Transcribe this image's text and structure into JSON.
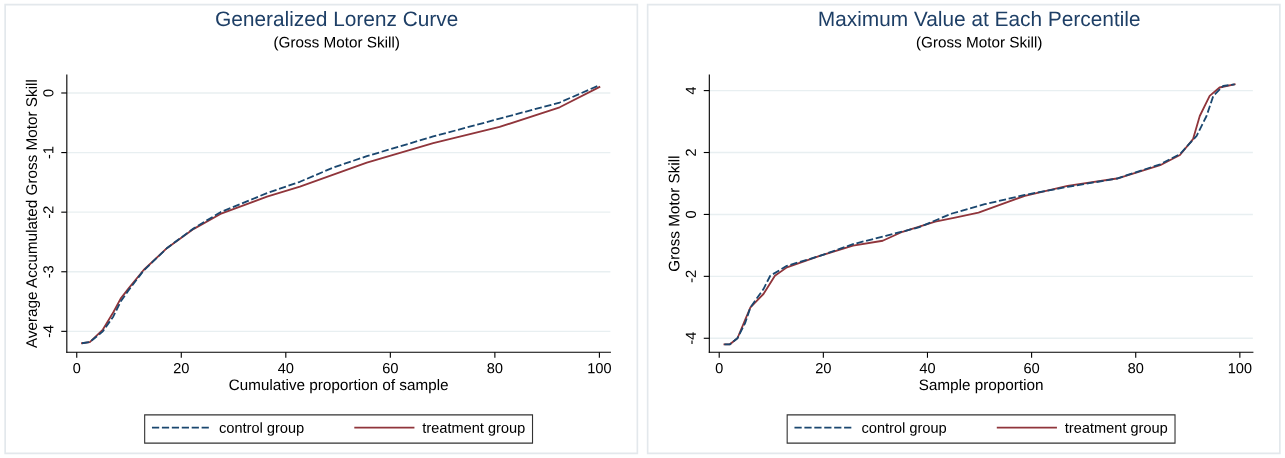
{
  "chart_data": [
    {
      "type": "line",
      "title": "Generalized Lorenz Curve",
      "subtitle": "(Gross Motor Skill)",
      "xlabel": "Cumulative proportion of sample",
      "ylabel": "Average Accumulated Gross Motor Skill",
      "xlim": [
        -1.9,
        102.1
      ],
      "ylim": [
        -4.35,
        0.3
      ],
      "xticks": [
        0,
        20,
        40,
        60,
        80,
        100
      ],
      "yticks": [
        -4,
        -3,
        -2,
        -1,
        0
      ],
      "grid": "y",
      "legend": "bottom",
      "series": [
        {
          "name": "control group",
          "color": "#1a476f",
          "line_style": "dashed",
          "x": [
            1,
            2.5,
            5,
            7,
            8.4,
            10,
            12.8,
            17.3,
            22.4,
            27.5,
            36.4,
            42.7,
            49.1,
            55.5,
            68.2,
            80.9,
            92.4,
            100
          ],
          "values": [
            -4.2,
            -4.18,
            -4.0,
            -3.75,
            -3.5,
            -3.3,
            -2.98,
            -2.6,
            -2.27,
            -2.0,
            -1.68,
            -1.49,
            -1.25,
            -1.06,
            -0.73,
            -0.43,
            -0.16,
            0.13
          ]
        },
        {
          "name": "treatment group",
          "color": "#90353b",
          "line_style": "solid",
          "x": [
            1,
            2.5,
            5,
            7,
            8.4,
            10,
            12.8,
            17.3,
            22.4,
            27.5,
            36.4,
            42.7,
            55.5,
            68.2,
            80.9,
            92.4,
            100
          ],
          "values": [
            -4.2,
            -4.18,
            -3.97,
            -3.68,
            -3.45,
            -3.27,
            -2.97,
            -2.6,
            -2.28,
            -2.03,
            -1.74,
            -1.57,
            -1.17,
            -0.84,
            -0.57,
            -0.24,
            0.1
          ]
        }
      ]
    },
    {
      "type": "line",
      "title": "Maximum Value at Each Percentile",
      "subtitle": "(Gross Motor Skill)",
      "xlabel": "Sample proportion",
      "ylabel": "Gross Motor Skill",
      "xlim": [
        -1.9,
        102.5
      ],
      "ylim": [
        -4.45,
        4.5
      ],
      "xticks": [
        0,
        20,
        40,
        60,
        80,
        100
      ],
      "yticks": [
        -4,
        -2,
        0,
        2,
        4
      ],
      "grid": "y",
      "legend": "bottom",
      "series": [
        {
          "name": "control group",
          "color": "#1a476f",
          "line_style": "dashed",
          "x": [
            1,
            2,
            3.5,
            5,
            6,
            8.5,
            9.8,
            13,
            19.3,
            25.7,
            32,
            38.3,
            44.7,
            51,
            58.7,
            66.9,
            76.4,
            84.7,
            88.5,
            91.7,
            93.6,
            94.9,
            96.8,
            99
          ],
          "values": [
            -4.2,
            -4.2,
            -4.0,
            -3.5,
            -3.0,
            -2.41,
            -1.98,
            -1.66,
            -1.34,
            -0.96,
            -0.69,
            -0.42,
            0.03,
            0.33,
            0.63,
            0.89,
            1.16,
            1.62,
            1.95,
            2.54,
            3.18,
            3.83,
            4.15,
            4.2
          ]
        },
        {
          "name": "treatment group",
          "color": "#90353b",
          "line_style": "solid",
          "x": [
            1,
            2,
            3.5,
            5,
            6,
            8.5,
            10.7,
            13,
            19.3,
            25.7,
            31.4,
            35.2,
            41.5,
            45.3,
            49.8,
            58.7,
            66.9,
            76.4,
            84.7,
            88.5,
            91,
            92.3,
            94.2,
            96.1,
            99
          ],
          "values": [
            -4.2,
            -4.2,
            -4.0,
            -3.4,
            -3.0,
            -2.57,
            -1.98,
            -1.71,
            -1.34,
            -1.01,
            -0.85,
            -0.56,
            -0.23,
            -0.1,
            0.06,
            0.6,
            0.92,
            1.16,
            1.59,
            1.92,
            2.43,
            3.18,
            3.83,
            4.1,
            4.2
          ]
        }
      ]
    }
  ]
}
